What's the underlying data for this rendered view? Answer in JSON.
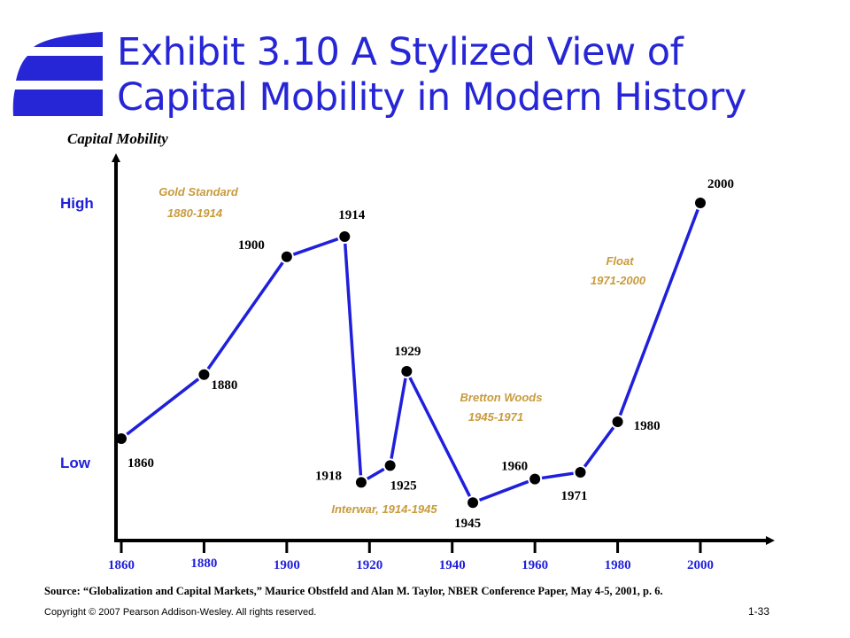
{
  "title_line1": "Exhibit 3.10  A Stylized View of",
  "title_line2": "Capital Mobility in Modern History",
  "colors": {
    "title": "#2626d6",
    "line": "#1f1fdc",
    "labels_blue": "#1f1fdc",
    "eras": "#c89b3c",
    "logo": "#2626d6"
  },
  "chart_data": {
    "type": "line",
    "ylabel": "Capital Mobility",
    "y_level_labels": [
      "High",
      "Low"
    ],
    "x_tick_labels": [
      "1860",
      "1880",
      "1900",
      "1920",
      "1940",
      "1960",
      "1980",
      "2000"
    ],
    "xlim": [
      1860,
      2000
    ],
    "ylim": [
      0,
      100
    ],
    "points": [
      {
        "year": 1860,
        "label": "1860",
        "value": 25
      },
      {
        "year": 1880,
        "label": "1880",
        "value": 44
      },
      {
        "year": 1900,
        "label": "1900",
        "value": 79
      },
      {
        "year": 1914,
        "label": "1914",
        "value": 85
      },
      {
        "year": 1918,
        "label": "1918",
        "value": 12
      },
      {
        "year": 1925,
        "label": "1925",
        "value": 17
      },
      {
        "year": 1929,
        "label": "1929",
        "value": 45
      },
      {
        "year": 1945,
        "label": "1945",
        "value": 6
      },
      {
        "year": 1960,
        "label": "1960",
        "value": 13
      },
      {
        "year": 1971,
        "label": "1971",
        "value": 15
      },
      {
        "year": 1980,
        "label": "1980",
        "value": 30
      },
      {
        "year": 2000,
        "label": "2000",
        "value": 95
      }
    ],
    "annotations": [
      {
        "line1": "Gold Standard",
        "line2": "1880-1914"
      },
      {
        "line1": "Interwar, 1914-1945",
        "line2": ""
      },
      {
        "line1": "Bretton Woods",
        "line2": "1945-1971"
      },
      {
        "line1": "Float",
        "line2": "1971-2000"
      }
    ]
  },
  "source": "Source: “Globalization  and Capital Markets,” Maurice Obstfeld and Alan M. Taylor, NBER Conference Paper, May 4-5, 2001, p. 6.",
  "copyright": "Copyright © 2007 Pearson Addison-Wesley. All rights reserved.",
  "slide_number": "1-33"
}
